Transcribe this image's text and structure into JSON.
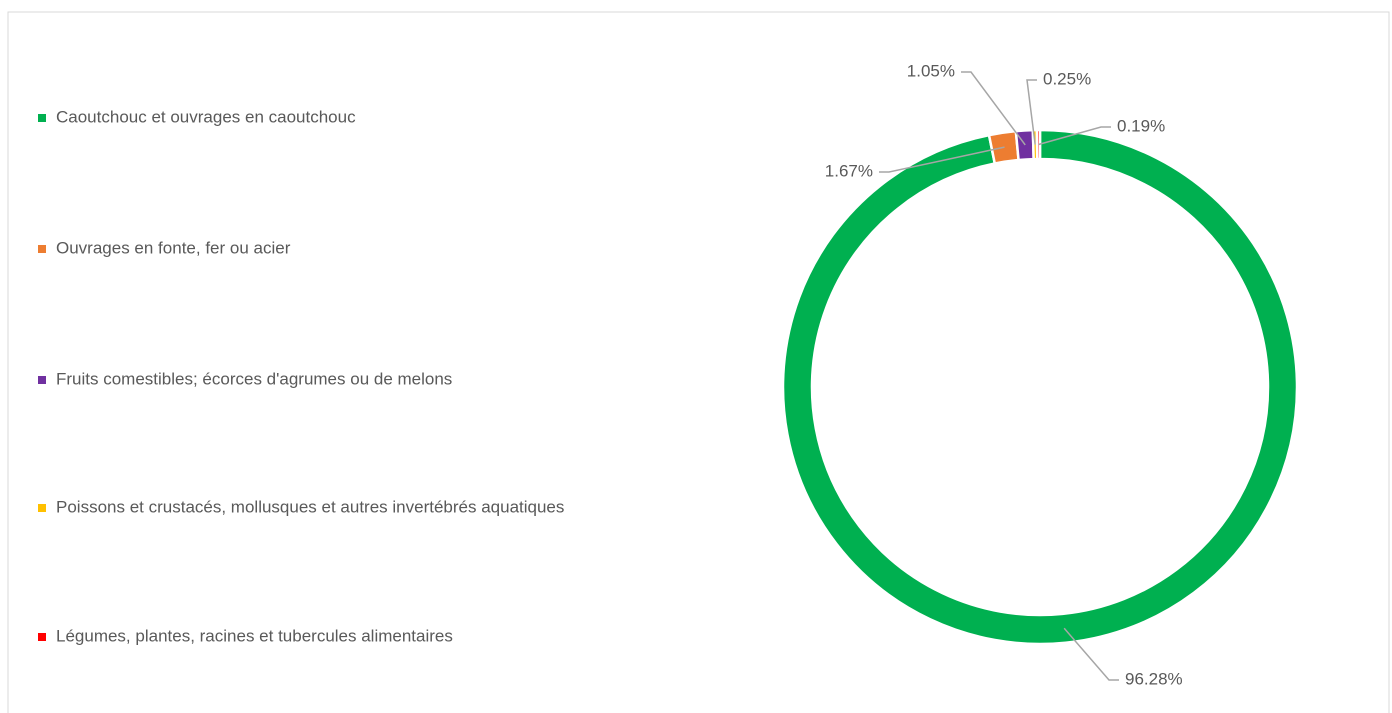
{
  "chart_data": {
    "type": "donut",
    "categories": [
      "Caoutchouc et ouvrages en caoutchouc",
      "Ouvrages en fonte, fer ou acier",
      "Fruits comestibles; écorces d'agrumes ou de melons",
      "Poissons et crustacés, mollusques et autres invertébrés aquatiques",
      "Légumes, plantes, racines et tubercules alimentaires"
    ],
    "values": [
      96.28,
      1.67,
      1.05,
      0.25,
      0.19
    ],
    "value_labels": [
      "96.28%",
      "1.67%",
      "1.05%",
      "0.25%",
      "0.19%"
    ],
    "colors": [
      "#00b050",
      "#ed7d31",
      "#7030a0",
      "#ffc000",
      "#ff0000"
    ],
    "legend": "left"
  }
}
